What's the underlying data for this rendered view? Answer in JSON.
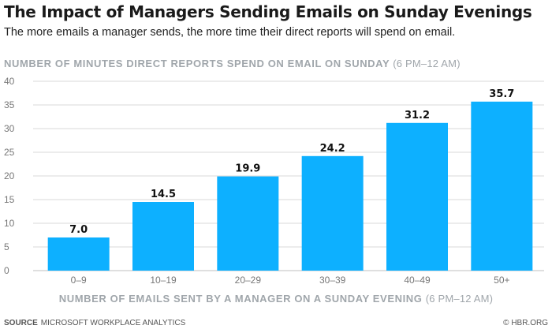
{
  "header": {
    "title": "The Impact of Managers Sending Emails on Sunday Evenings",
    "subtitle": "The more emails a manager sends, the more time their direct reports will spend on email."
  },
  "footer": {
    "source_label": "SOURCE",
    "source_text": "MICROSOFT WORKPLACE ANALYTICS",
    "credit": "© HBR.ORG"
  },
  "colors": {
    "bar": "#0db0ff",
    "axis_text": "#a0a6ab",
    "grid": "#d9d9d9"
  },
  "chart_data": {
    "type": "bar",
    "title": "The Impact of Managers Sending Emails on Sunday Evenings",
    "subtitle": "The more emails a manager sends, the more time their direct reports will spend on email.",
    "ylabel": "NUMBER OF MINUTES DIRECT REPORTS SPEND ON EMAIL ON SUNDAY",
    "ylabel_note": "(6 PM–12 AM)",
    "xlabel": "NUMBER OF EMAILS SENT BY A MANAGER ON A SUNDAY EVENING",
    "xlabel_note": "(6 PM–12 AM)",
    "categories": [
      "0–9",
      "10–19",
      "20–29",
      "30–39",
      "40–49",
      "50+"
    ],
    "values": [
      7.0,
      14.5,
      19.9,
      24.2,
      31.2,
      35.7
    ],
    "value_labels": [
      "7.0",
      "14.5",
      "19.9",
      "24.2",
      "31.2",
      "35.7"
    ],
    "ylim": [
      0,
      40
    ],
    "yticks": [
      0,
      5,
      10,
      15,
      20,
      25,
      30,
      35,
      40
    ],
    "grid": true,
    "legend": "none"
  }
}
